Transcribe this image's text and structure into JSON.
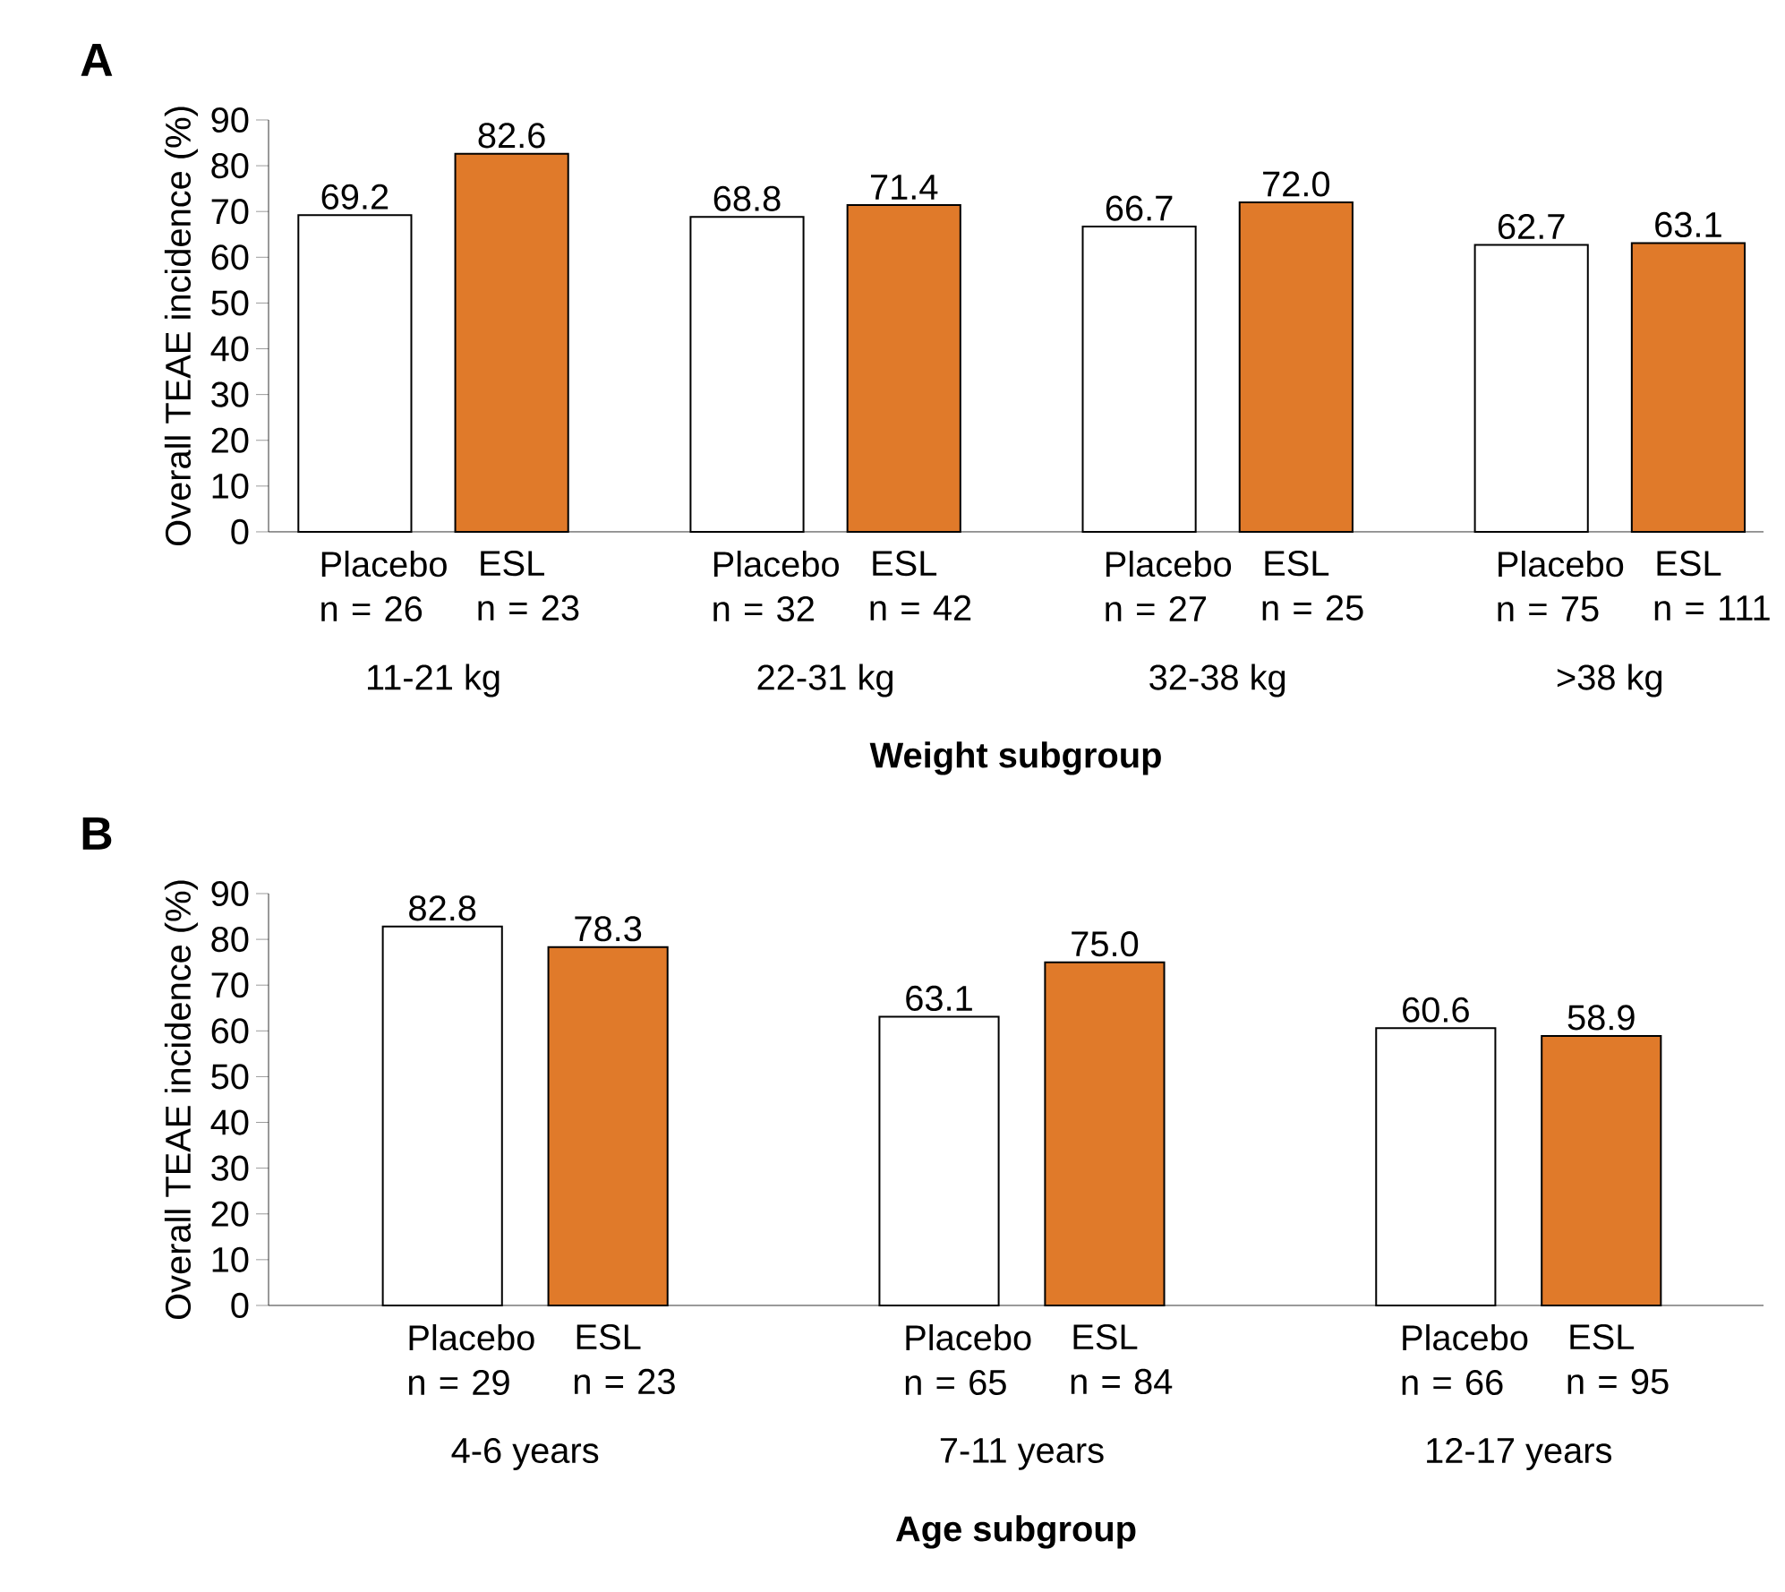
{
  "chart_data": [
    {
      "type": "bar",
      "title": "A",
      "ylabel": "Overall TEAE incidence (%)",
      "xlabel": "Weight subgroup",
      "categories": [
        "Placebo n = 26",
        "ESL n = 23",
        "Placebo n = 32",
        "ESL n = 42",
        "Placebo n = 27",
        "ESL n = 25",
        "Placebo n = 75",
        "ESL n = 111"
      ],
      "values": [
        69.2,
        82.6,
        68.8,
        71.4,
        66.7,
        72.0,
        62.7,
        63.1
      ],
      "colors": [
        "#ffffff",
        "#e07a2a",
        "#ffffff",
        "#e07a2a",
        "#ffffff",
        "#e07a2a",
        "#ffffff",
        "#e07a2a"
      ],
      "ylim": [
        0,
        90
      ],
      "yticks": [
        0,
        10,
        20,
        30,
        40,
        50,
        60,
        70,
        80,
        90
      ],
      "value_labels": [
        "69.2",
        "82.6",
        "68.8",
        "71.4",
        "66.7",
        "72.0",
        "62.7",
        "63.1"
      ],
      "annotations": [
        "11-21 kg",
        "22-31 kg",
        "32-38 kg",
        ">38 kg"
      ]
    },
    {
      "type": "bar",
      "title": "B",
      "ylabel": "Overall TEAE incidence (%)",
      "xlabel": "Age subgroup",
      "categories": [
        "Placebo n = 29",
        "ESL n = 23",
        "Placebo n = 65",
        "ESL n = 84",
        "Placebo n = 66",
        "ESL n = 95"
      ],
      "values": [
        82.8,
        78.3,
        63.1,
        75.0,
        60.6,
        58.9
      ],
      "colors": [
        "#ffffff",
        "#e07a2a",
        "#ffffff",
        "#e07a2a",
        "#ffffff",
        "#e07a2a"
      ],
      "ylim": [
        0,
        90
      ],
      "yticks": [
        0,
        10,
        20,
        30,
        40,
        50,
        60,
        70,
        80,
        90
      ],
      "value_labels": [
        "82.8",
        "78.3",
        "63.1",
        "75.0",
        "60.6",
        "58.9"
      ],
      "annotations": [
        "4-6 years",
        "7-11 years",
        "12-17 years"
      ]
    }
  ]
}
